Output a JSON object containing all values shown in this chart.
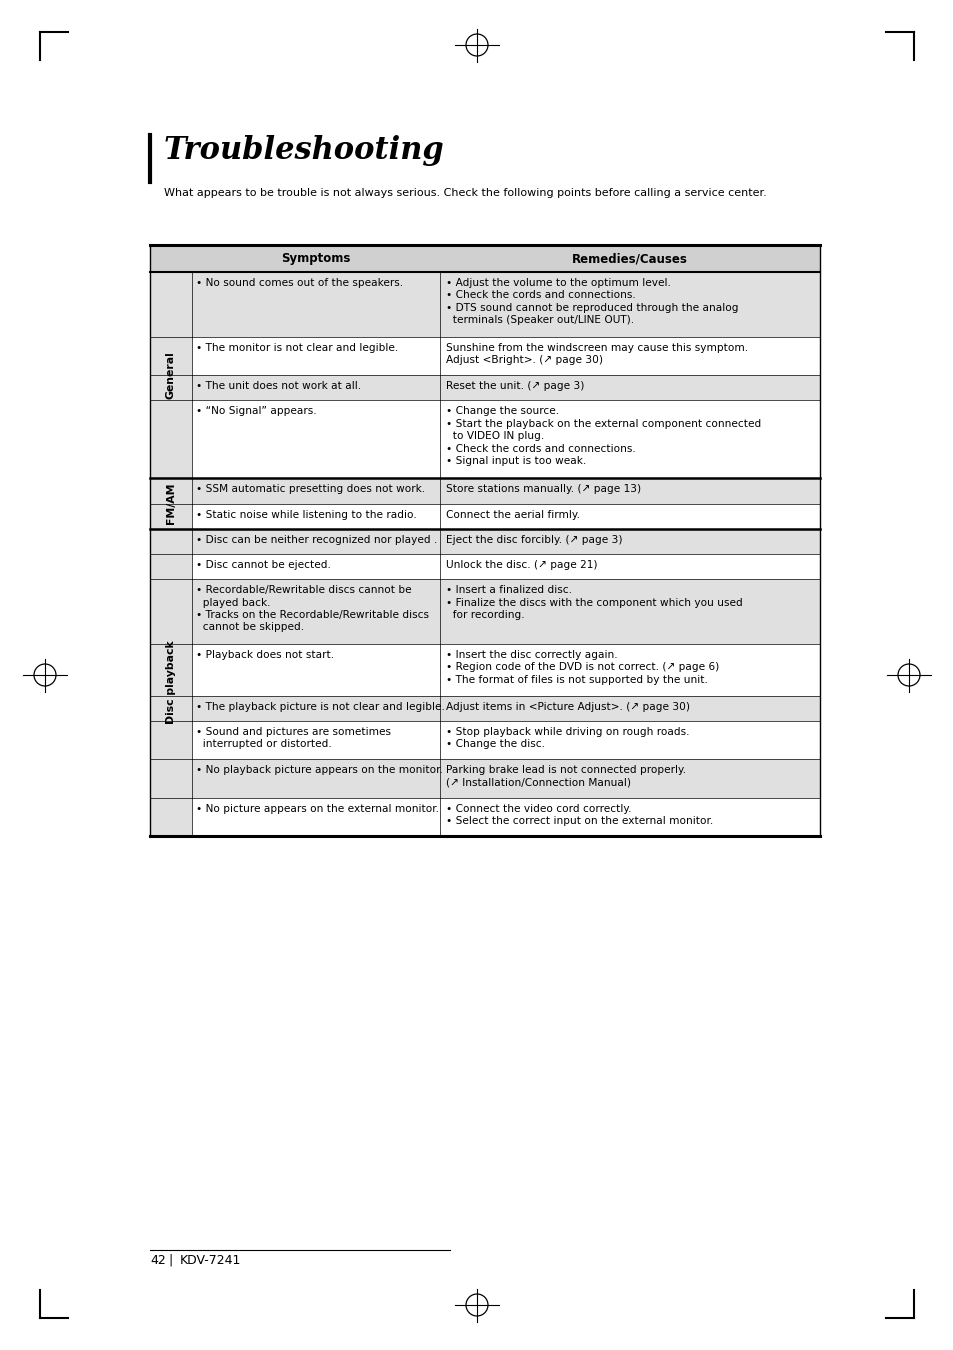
{
  "title": "Troubleshooting",
  "subtitle": "What appears to be trouble is not always serious. Check the following points before calling a service center.",
  "page_num": "42",
  "model": "KDV-7241",
  "col1_header": "Symptoms",
  "col2_header": "Remedies/Causes",
  "bg_color": "#ffffff",
  "header_bg": "#d0d0d0",
  "row_bg_light": "#e0e0e0",
  "row_bg_white": "#ffffff",
  "table_sections": [
    {
      "section": "General",
      "rows": [
        {
          "symptom": "• No sound comes out of the speakers.",
          "remedy": "• Adjust the volume to the optimum level.\n• Check the cords and connections.\n• DTS sound cannot be reproduced through the analog\n  terminals (Speaker out/LINE OUT).",
          "bg": "light",
          "sym_lines": 1,
          "rem_lines": 4
        },
        {
          "symptom": "• The monitor is not clear and legible.",
          "remedy": "Sunshine from the windscreen may cause this symptom.\nAdjust <Bright>. (↗ page 30)",
          "bg": "white",
          "sym_lines": 1,
          "rem_lines": 2,
          "remedy_bold": "Bright"
        },
        {
          "symptom": "• The unit does not work at all.",
          "remedy": "Reset the unit. (↗ page 3)",
          "bg": "light",
          "sym_lines": 1,
          "rem_lines": 1
        },
        {
          "symptom": "• “No Signal” appears.",
          "remedy": "• Change the source.\n• Start the playback on the external component connected\n  to VIDEO IN plug.\n• Check the cords and connections.\n• Signal input is too weak.",
          "bg": "white",
          "sym_lines": 1,
          "rem_lines": 5
        }
      ]
    },
    {
      "section": "FM/AM",
      "rows": [
        {
          "symptom": "• SSM automatic presetting does not work.",
          "remedy": "Store stations manually. (↗ page 13)",
          "bg": "light",
          "sym_lines": 1,
          "rem_lines": 1
        },
        {
          "symptom": "• Static noise while listening to the radio.",
          "remedy": "Connect the aerial firmly.",
          "bg": "white",
          "sym_lines": 1,
          "rem_lines": 1
        }
      ]
    },
    {
      "section": "Disc playback",
      "rows": [
        {
          "symptom": "• Disc can be neither recognized nor played .",
          "remedy": "Eject the disc forcibly. (↗ page 3)",
          "bg": "light",
          "sym_lines": 1,
          "rem_lines": 1
        },
        {
          "symptom": "• Disc cannot be ejected.",
          "remedy": "Unlock the disc. (↗ page 21)",
          "bg": "white",
          "sym_lines": 1,
          "rem_lines": 1
        },
        {
          "symptom": "• Recordable/Rewritable discs cannot be\n  played back.\n• Tracks on the Recordable/Rewritable discs\n  cannot be skipped.",
          "remedy": "• Insert a finalized disc.\n• Finalize the discs with the component which you used\n  for recording.",
          "bg": "light",
          "sym_lines": 4,
          "rem_lines": 3
        },
        {
          "symptom": "• Playback does not start.",
          "remedy": "• Insert the disc correctly again.\n• Region code of the DVD is not correct. (↗ page 6)\n• The format of files is not supported by the unit.",
          "bg": "white",
          "sym_lines": 1,
          "rem_lines": 3
        },
        {
          "symptom": "• The playback picture is not clear and legible.",
          "remedy": "Adjust items in <Picture Adjust>. (↗ page 30)",
          "bg": "light",
          "sym_lines": 1,
          "rem_lines": 1,
          "remedy_bold": "Picture Adjust"
        },
        {
          "symptom": "• Sound and pictures are sometimes\n  interrupted or distorted.",
          "remedy": "• Stop playback while driving on rough roads.\n• Change the disc.",
          "bg": "white",
          "sym_lines": 2,
          "rem_lines": 2
        },
        {
          "symptom": "• No playback picture appears on the monitor.",
          "remedy": "Parking brake lead is not connected properly.\n(↗ Installation/Connection Manual)",
          "bg": "light",
          "sym_lines": 1,
          "rem_lines": 2
        },
        {
          "symptom": "• No picture appears on the external monitor.",
          "remedy": "• Connect the video cord correctly.\n• Select the correct input on the external monitor.",
          "bg": "white",
          "sym_lines": 1,
          "rem_lines": 2
        }
      ]
    }
  ]
}
